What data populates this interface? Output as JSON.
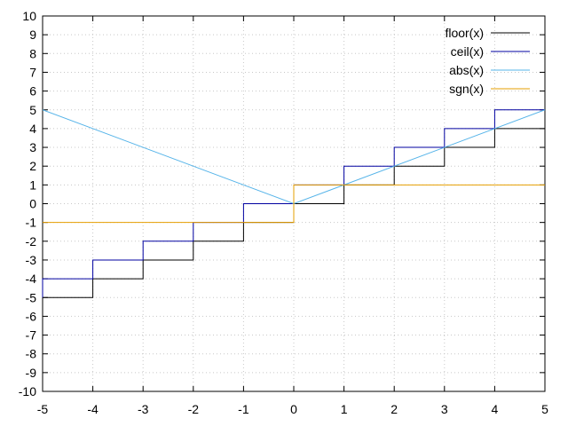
{
  "chart_data": {
    "type": "line",
    "title": "",
    "xlabel": "",
    "ylabel": "",
    "xlim": [
      -5,
      5
    ],
    "ylim": [
      -10,
      10
    ],
    "x_ticks": [
      -5,
      -4,
      -3,
      -2,
      -1,
      0,
      1,
      2,
      3,
      4,
      5
    ],
    "y_ticks": [
      -10,
      -9,
      -8,
      -7,
      -6,
      -5,
      -4,
      -3,
      -2,
      -1,
      0,
      1,
      2,
      3,
      4,
      5,
      6,
      7,
      8,
      9,
      10
    ],
    "grid": true,
    "legend_position": "top-right",
    "series": [
      {
        "name": "floor(x)",
        "color": "#000000",
        "points": [
          [
            -5,
            -5
          ],
          [
            -4,
            -5
          ],
          [
            -4,
            -4
          ],
          [
            -3,
            -4
          ],
          [
            -3,
            -3
          ],
          [
            -2,
            -3
          ],
          [
            -2,
            -2
          ],
          [
            -1,
            -2
          ],
          [
            -1,
            -1
          ],
          [
            0,
            -1
          ],
          [
            0,
            0
          ],
          [
            1,
            0
          ],
          [
            1,
            1
          ],
          [
            2,
            1
          ],
          [
            2,
            2
          ],
          [
            3,
            2
          ],
          [
            3,
            3
          ],
          [
            4,
            3
          ],
          [
            4,
            4
          ],
          [
            5,
            4
          ],
          [
            5,
            5
          ]
        ]
      },
      {
        "name": "ceil(x)",
        "color": "#0000a0",
        "points": [
          [
            -5,
            -5
          ],
          [
            -5,
            -4
          ],
          [
            -4,
            -4
          ],
          [
            -4,
            -3
          ],
          [
            -3,
            -3
          ],
          [
            -3,
            -2
          ],
          [
            -2,
            -2
          ],
          [
            -2,
            -1
          ],
          [
            -1,
            -1
          ],
          [
            -1,
            0
          ],
          [
            0,
            0
          ],
          [
            0,
            1
          ],
          [
            1,
            1
          ],
          [
            1,
            2
          ],
          [
            2,
            2
          ],
          [
            2,
            3
          ],
          [
            3,
            3
          ],
          [
            3,
            4
          ],
          [
            4,
            4
          ],
          [
            4,
            5
          ],
          [
            5,
            5
          ]
        ]
      },
      {
        "name": "abs(x)",
        "color": "#56b4e9",
        "points": [
          [
            -5,
            5
          ],
          [
            0,
            0
          ],
          [
            5,
            5
          ]
        ]
      },
      {
        "name": "sgn(x)",
        "color": "#e69f00",
        "points": [
          [
            -5,
            -1
          ],
          [
            0,
            -1
          ],
          [
            0,
            1
          ],
          [
            5,
            1
          ]
        ]
      }
    ]
  }
}
